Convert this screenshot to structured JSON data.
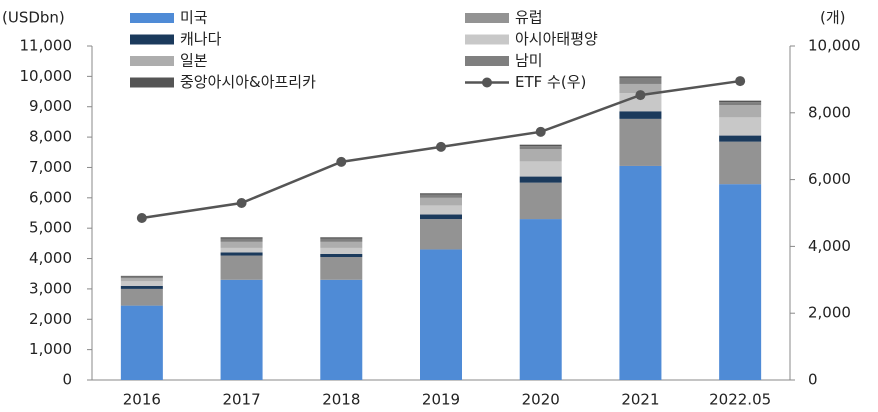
{
  "chart_data": {
    "type": "bar",
    "y_label": "(USDbn)",
    "y2_label": "(개)",
    "categories": [
      "2016",
      "2017",
      "2018",
      "2019",
      "2020",
      "2021",
      "2022.05"
    ],
    "series": [
      {
        "name": "미국",
        "color": "#4f8bd6",
        "values": [
          2450,
          3300,
          3300,
          4300,
          5300,
          7050,
          6450
        ]
      },
      {
        "name": "유럽",
        "color": "#939393",
        "values": [
          550,
          800,
          750,
          1000,
          1200,
          1550,
          1400
        ]
      },
      {
        "name": "캐나다",
        "color": "#1b3a5c",
        "values": [
          100,
          100,
          100,
          150,
          200,
          250,
          200
        ]
      },
      {
        "name": "아시아태평양",
        "color": "#c8c8c8",
        "values": [
          150,
          150,
          200,
          300,
          500,
          600,
          600
        ]
      },
      {
        "name": "일본",
        "color": "#adadad",
        "values": [
          100,
          200,
          200,
          250,
          400,
          300,
          400
        ]
      },
      {
        "name": "남미",
        "color": "#7f7f7f",
        "values": [
          50,
          100,
          100,
          100,
          100,
          200,
          100
        ]
      },
      {
        "name": "중앙아시아&아프리카",
        "color": "#555555",
        "values": [
          30,
          50,
          50,
          50,
          50,
          50,
          50
        ]
      },
      {
        "name": "ETF 수(우)",
        "color": "#555555",
        "type": "line",
        "axis": "y2",
        "values": [
          4850,
          5300,
          6530,
          6980,
          7430,
          8530,
          8950
        ]
      }
    ],
    "ylim": [
      0,
      11000
    ],
    "yticks": [
      0,
      {
        "value": 1000,
        "label": "1,000"
      },
      {
        "value": 2000,
        "label": "2,000"
      },
      {
        "value": 3000,
        "label": "3,000"
      },
      {
        "value": 4000,
        "label": "4,000"
      },
      {
        "value": 5000,
        "label": "5,000"
      },
      {
        "value": 6000,
        "label": "6,000"
      },
      {
        "value": 7000,
        "label": "7,000"
      },
      {
        "value": 8000,
        "label": "8,000"
      },
      {
        "value": 9000,
        "label": "9,000"
      },
      {
        "value": 10000,
        "label": "10,000"
      },
      {
        "value": 11000,
        "label": "11,000"
      }
    ],
    "y2lim": [
      0,
      10000
    ],
    "y2ticks": [
      0,
      {
        "value": 2000,
        "label": "2,000"
      },
      {
        "value": 4000,
        "label": "4,000"
      },
      {
        "value": 6000,
        "label": "6,000"
      },
      {
        "value": 8000,
        "label": "8,000"
      },
      {
        "value": 10000,
        "label": "10,000"
      }
    ],
    "grid": false
  }
}
